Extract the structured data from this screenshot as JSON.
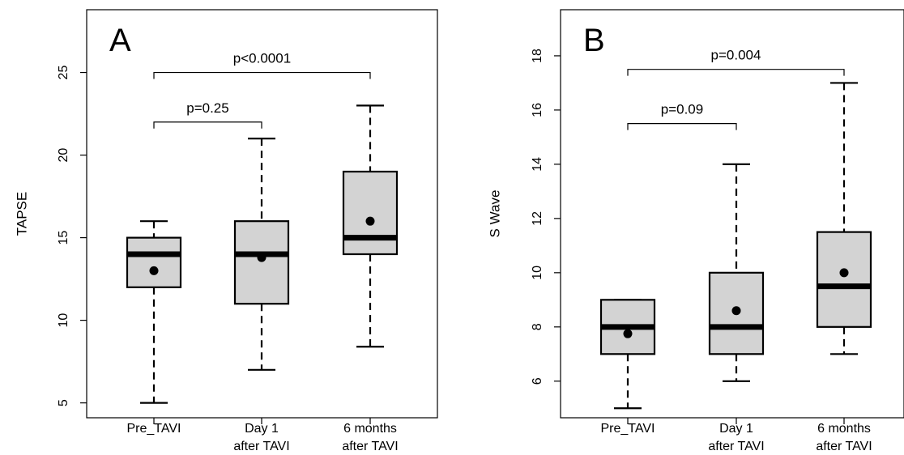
{
  "chart_data": [
    {
      "type": "box",
      "panel_label": "A",
      "ylabel": "TAPSE",
      "yticks": [
        5,
        10,
        15,
        20,
        25
      ],
      "ylim": [
        4.1,
        28.8
      ],
      "categories": [
        [
          "Pre_TAVI"
        ],
        [
          "Day 1",
          "after TAVI"
        ],
        [
          "6 months",
          "after TAVI"
        ]
      ],
      "boxes": [
        {
          "min": 5,
          "q1": 12,
          "median": 14,
          "q3": 15,
          "max": 16,
          "mean": 13
        },
        {
          "min": 7,
          "q1": 11,
          "median": 14,
          "q3": 16,
          "max": 21,
          "mean": 13.8
        },
        {
          "min": 8.4,
          "q1": 14,
          "median": 15,
          "q3": 19,
          "max": 23,
          "mean": 16
        }
      ],
      "brackets": [
        {
          "from": 0,
          "to": 1,
          "y": 22,
          "label": "p=0.25"
        },
        {
          "from": 0,
          "to": 2,
          "y": 25,
          "label": "p<0.0001"
        }
      ],
      "grid": false
    },
    {
      "type": "box",
      "panel_label": "B",
      "ylabel": "S Wave",
      "yticks": [
        6,
        8,
        10,
        12,
        14,
        16,
        18
      ],
      "ylim": [
        4.65,
        19.7
      ],
      "categories": [
        [
          "Pre_TAVI"
        ],
        [
          "Day 1",
          "after TAVI"
        ],
        [
          "6 months",
          "after TAVI"
        ]
      ],
      "boxes": [
        {
          "min": 5,
          "q1": 7,
          "median": 8,
          "q3": 9,
          "max": 9,
          "mean": 7.75
        },
        {
          "min": 6,
          "q1": 7,
          "median": 8,
          "q3": 10,
          "max": 14,
          "mean": 8.6
        },
        {
          "min": 7,
          "q1": 8,
          "median": 9.5,
          "q3": 11.5,
          "max": 17,
          "mean": 10
        }
      ],
      "brackets": [
        {
          "from": 0,
          "to": 1,
          "y": 15.5,
          "label": "p=0.09"
        },
        {
          "from": 0,
          "to": 2,
          "y": 17.5,
          "label": "p=0.004"
        }
      ],
      "grid": false
    }
  ]
}
